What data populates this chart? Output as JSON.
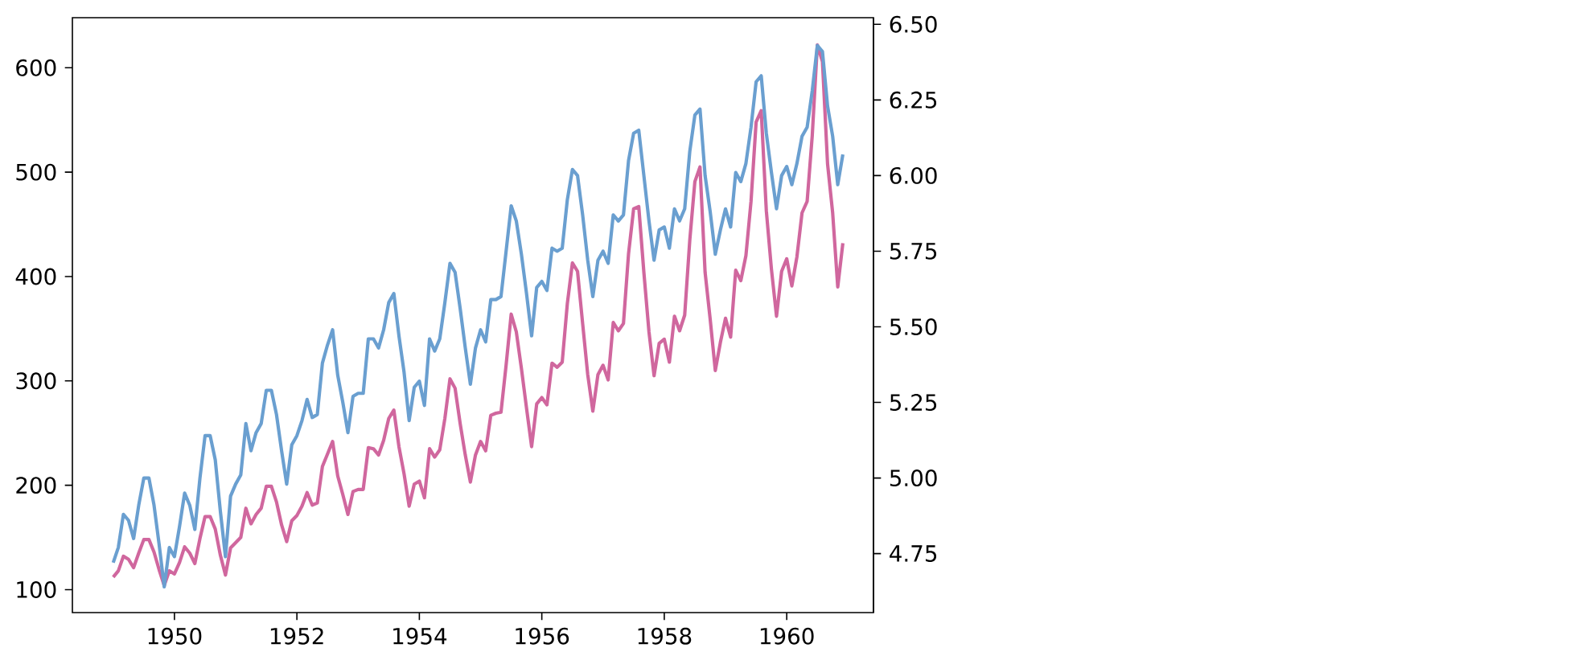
{
  "chart_data": {
    "type": "line",
    "x": [
      "1949-01",
      "1949-02",
      "1949-03",
      "1949-04",
      "1949-05",
      "1949-06",
      "1949-07",
      "1949-08",
      "1949-09",
      "1949-10",
      "1949-11",
      "1949-12",
      "1950-01",
      "1950-02",
      "1950-03",
      "1950-04",
      "1950-05",
      "1950-06",
      "1950-07",
      "1950-08",
      "1950-09",
      "1950-10",
      "1950-11",
      "1950-12",
      "1951-01",
      "1951-02",
      "1951-03",
      "1951-04",
      "1951-05",
      "1951-06",
      "1951-07",
      "1951-08",
      "1951-09",
      "1951-10",
      "1951-11",
      "1951-12",
      "1952-01",
      "1952-02",
      "1952-03",
      "1952-04",
      "1952-05",
      "1952-06",
      "1952-07",
      "1952-08",
      "1952-09",
      "1952-10",
      "1952-11",
      "1952-12",
      "1953-01",
      "1953-02",
      "1953-03",
      "1953-04",
      "1953-05",
      "1953-06",
      "1953-07",
      "1953-08",
      "1953-09",
      "1953-10",
      "1953-11",
      "1953-12",
      "1954-01",
      "1954-02",
      "1954-03",
      "1954-04",
      "1954-05",
      "1954-06",
      "1954-07",
      "1954-08",
      "1954-09",
      "1954-10",
      "1954-11",
      "1954-12",
      "1955-01",
      "1955-02",
      "1955-03",
      "1955-04",
      "1955-05",
      "1955-06",
      "1955-07",
      "1955-08",
      "1955-09",
      "1955-10",
      "1955-11",
      "1955-12",
      "1956-01",
      "1956-02",
      "1956-03",
      "1956-04",
      "1956-05",
      "1956-06",
      "1956-07",
      "1956-08",
      "1956-09",
      "1956-10",
      "1956-11",
      "1956-12",
      "1957-01",
      "1957-02",
      "1957-03",
      "1957-04",
      "1957-05",
      "1957-06",
      "1957-07",
      "1957-08",
      "1957-09",
      "1957-10",
      "1957-11",
      "1957-12",
      "1958-01",
      "1958-02",
      "1958-03",
      "1958-04",
      "1958-05",
      "1958-06",
      "1958-07",
      "1958-08",
      "1958-09",
      "1958-10",
      "1958-11",
      "1958-12",
      "1959-01",
      "1959-02",
      "1959-03",
      "1959-04",
      "1959-05",
      "1959-06",
      "1959-07",
      "1959-08",
      "1959-09",
      "1959-10",
      "1959-11",
      "1959-12",
      "1960-01",
      "1960-02",
      "1960-03",
      "1960-04",
      "1960-05",
      "1960-06",
      "1960-07",
      "1960-08",
      "1960-09",
      "1960-10",
      "1960-11",
      "1960-12"
    ],
    "series": [
      {
        "color": "#6a9fd0",
        "axis": "y2",
        "values": [
          4.72,
          4.77,
          4.88,
          4.86,
          4.8,
          4.91,
          5.0,
          5.0,
          4.91,
          4.78,
          4.64,
          4.77,
          4.74,
          4.84,
          4.95,
          4.91,
          4.83,
          5.0,
          5.14,
          5.14,
          5.06,
          4.89,
          4.74,
          4.94,
          4.98,
          5.01,
          5.18,
          5.09,
          5.15,
          5.18,
          5.29,
          5.29,
          5.21,
          5.09,
          4.98,
          5.11,
          5.14,
          5.19,
          5.26,
          5.2,
          5.21,
          5.38,
          5.44,
          5.49,
          5.34,
          5.25,
          5.15,
          5.27,
          5.28,
          5.28,
          5.46,
          5.46,
          5.43,
          5.49,
          5.58,
          5.61,
          5.47,
          5.35,
          5.19,
          5.3,
          5.32,
          5.24,
          5.46,
          5.42,
          5.46,
          5.58,
          5.71,
          5.68,
          5.56,
          5.43,
          5.31,
          5.43,
          5.49,
          5.45,
          5.59,
          5.59,
          5.6,
          5.75,
          5.9,
          5.85,
          5.74,
          5.61,
          5.47,
          5.63,
          5.65,
          5.62,
          5.76,
          5.75,
          5.76,
          5.92,
          6.02,
          6.0,
          5.87,
          5.72,
          5.6,
          5.72,
          5.75,
          5.71,
          5.87,
          5.85,
          5.87,
          6.05,
          6.14,
          6.15,
          6.0,
          5.85,
          5.72,
          5.82,
          5.83,
          5.76,
          5.89,
          5.85,
          5.89,
          6.08,
          6.2,
          6.22,
          6.0,
          5.88,
          5.74,
          5.82,
          5.89,
          5.83,
          6.01,
          5.98,
          6.04,
          6.16,
          6.31,
          6.33,
          6.14,
          6.01,
          5.89,
          6.0,
          6.03,
          5.97,
          6.04,
          6.13,
          6.16,
          6.28,
          6.43,
          6.41,
          6.23,
          6.13,
          5.97,
          6.07
        ]
      },
      {
        "color": "#d0679e",
        "values": [
          112,
          118,
          132,
          129,
          121,
          135,
          148,
          148,
          136,
          119,
          104,
          118,
          115,
          126,
          141,
          135,
          125,
          149,
          170,
          170,
          158,
          133,
          114,
          140,
          145,
          150,
          178,
          163,
          172,
          178,
          199,
          199,
          184,
          162,
          146,
          166,
          171,
          180,
          193,
          181,
          183,
          218,
          230,
          242,
          209,
          191,
          172,
          194,
          196,
          196,
          236,
          235,
          229,
          243,
          264,
          272,
          237,
          211,
          180,
          201,
          204,
          188,
          235,
          227,
          234,
          264,
          302,
          293,
          259,
          229,
          203,
          229,
          242,
          233,
          267,
          269,
          270,
          315,
          364,
          347,
          312,
          274,
          237,
          278,
          284,
          277,
          317,
          313,
          318,
          374,
          413,
          405,
          355,
          306,
          271,
          306,
          315,
          301,
          356,
          348,
          355,
          422,
          465,
          467,
          404,
          347,
          305,
          336,
          340,
          318,
          362,
          348,
          363,
          435,
          491,
          505,
          404,
          359,
          310,
          337,
          360,
          342,
          406,
          396,
          420,
          472,
          548,
          559,
          463,
          407,
          362,
          405,
          417,
          391,
          419,
          461,
          472,
          535,
          622,
          606,
          508,
          461,
          390,
          432
        ]
      }
    ],
    "xlim": [
      "1948-05",
      "1961-06"
    ],
    "xticks": [
      {
        "value": "1950",
        "label": "1950"
      },
      {
        "value": "1952",
        "label": "1952"
      },
      {
        "value": "1954",
        "label": "1954"
      },
      {
        "value": "1956",
        "label": "1956"
      },
      {
        "value": "1958",
        "label": "1958"
      },
      {
        "value": "1960",
        "label": "1960"
      }
    ],
    "ylim": [
      78,
      648
    ],
    "yticks": [
      100,
      200,
      300,
      400,
      500,
      600
    ],
    "y2lim": [
      4.555,
      6.522
    ],
    "y2ticks": [
      {
        "value": 4.75,
        "label": "4.75"
      },
      {
        "value": 5.0,
        "label": "5.00"
      },
      {
        "value": 5.25,
        "label": "5.25"
      },
      {
        "value": 5.5,
        "label": "5.50"
      },
      {
        "value": 5.75,
        "label": "5.75"
      },
      {
        "value": 6.0,
        "label": "6.00"
      },
      {
        "value": 6.25,
        "label": "6.25"
      },
      {
        "value": 6.5,
        "label": "6.50"
      }
    ],
    "marker": "none"
  }
}
